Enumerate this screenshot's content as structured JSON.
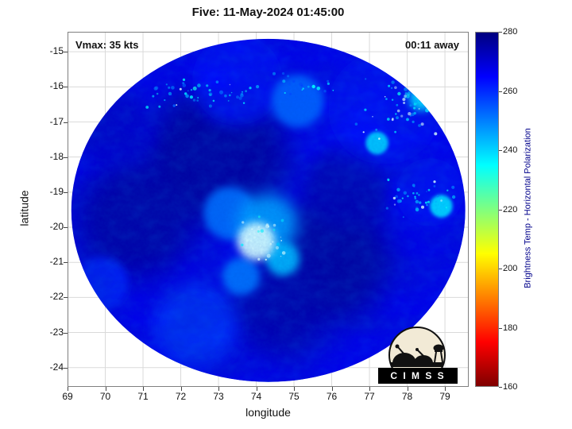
{
  "chart_data": {
    "type": "heatmap",
    "title": "Five: 11-May-2024 01:45:00",
    "xlabel": "longitude",
    "ylabel": "latitude",
    "xlim": [
      69,
      79.63
    ],
    "ylim": [
      -24.55,
      -14.43
    ],
    "xticks": [
      69,
      70,
      71,
      72,
      73,
      74,
      75,
      76,
      77,
      78,
      79
    ],
    "yticks": [
      -15,
      -16,
      -17,
      -18,
      -19,
      -20,
      -21,
      -22,
      -23,
      -24
    ],
    "grid": true,
    "annotations": {
      "vmax": "Vmax: 35 kts",
      "eta": "00:11 away"
    },
    "colorbar": {
      "label": "Brightness Temp - Horizontal Polarization",
      "min": 160,
      "max": 280,
      "ticks": [
        160,
        180,
        200,
        220,
        240,
        260,
        280
      ],
      "orientation": "vertical",
      "top_value": 280,
      "jet_stops": [
        [
          0,
          "#00007f"
        ],
        [
          0.125,
          "#0000ff"
        ],
        [
          0.375,
          "#00ffff"
        ],
        [
          0.625,
          "#ffff00"
        ],
        [
          0.875,
          "#ff0000"
        ],
        [
          1,
          "#7f0000"
        ]
      ]
    },
    "white_below": 232,
    "white_color": "#daffff",
    "swath": {
      "center_lon": 74.32,
      "center_lat": -19.52,
      "radius_lon": 5.22,
      "radius_lat": 4.89,
      "base_temp": 267
    },
    "regions": [
      {
        "lon": 73.0,
        "lat": -18.0,
        "r": 1.9,
        "temp": 277
      },
      {
        "lon": 70.8,
        "lat": -19.8,
        "r": 1.6,
        "temp": 276
      },
      {
        "lon": 75.9,
        "lat": -20.9,
        "r": 1.7,
        "temp": 277
      },
      {
        "lon": 74.6,
        "lat": -22.3,
        "r": 1.3,
        "temp": 275
      },
      {
        "lon": 76.4,
        "lat": -18.9,
        "r": 1.1,
        "temp": 274
      },
      {
        "lon": 70.2,
        "lat": -17.2,
        "r": 1.0,
        "temp": 271
      },
      {
        "lon": 77.4,
        "lat": -16.6,
        "r": 1.5,
        "temp": 263
      },
      {
        "lon": 73.5,
        "lat": -15.8,
        "r": 1.2,
        "temp": 264
      },
      {
        "lon": 78.6,
        "lat": -19.0,
        "r": 0.9,
        "temp": 263
      },
      {
        "lon": 72.4,
        "lat": -22.8,
        "r": 1.1,
        "temp": 259
      },
      {
        "lon": 69.9,
        "lat": -21.6,
        "r": 0.7,
        "temp": 261
      },
      {
        "lon": 75.1,
        "lat": -16.4,
        "r": 0.7,
        "temp": 253
      },
      {
        "lon": 73.3,
        "lat": -19.6,
        "r": 0.7,
        "temp": 252
      },
      {
        "lon": 73.6,
        "lat": -21.4,
        "r": 0.5,
        "temp": 251
      },
      {
        "lon": 74.3,
        "lat": -19.9,
        "r": 0.8,
        "temp": 246
      },
      {
        "lon": 74.7,
        "lat": -20.9,
        "r": 0.45,
        "temp": 243
      },
      {
        "lon": 78.4,
        "lat": -16.3,
        "r": 0.35,
        "temp": 238
      },
      {
        "lon": 77.2,
        "lat": -17.6,
        "r": 0.3,
        "temp": 240
      },
      {
        "lon": 78.9,
        "lat": -19.4,
        "r": 0.3,
        "temp": 238
      },
      {
        "lon": 74.0,
        "lat": -20.4,
        "r": 0.5,
        "temp": 228
      }
    ],
    "speckle_clusters": [
      {
        "lon": 72.6,
        "lat": -16.2,
        "sx": 2.0,
        "sy": 0.45,
        "count": 50,
        "temp": 242
      },
      {
        "lon": 78.0,
        "lat": -16.6,
        "sx": 1.4,
        "sy": 1.1,
        "count": 70,
        "temp": 236
      },
      {
        "lon": 78.3,
        "lat": -19.2,
        "sx": 1.2,
        "sy": 0.6,
        "count": 40,
        "temp": 240
      },
      {
        "lon": 74.2,
        "lat": -20.3,
        "sx": 0.8,
        "sy": 0.7,
        "count": 30,
        "temp": 230
      },
      {
        "lon": 75.3,
        "lat": -15.9,
        "sx": 1.0,
        "sy": 0.4,
        "count": 20,
        "temp": 246
      }
    ]
  },
  "logo": {
    "text": "C I M S S"
  }
}
